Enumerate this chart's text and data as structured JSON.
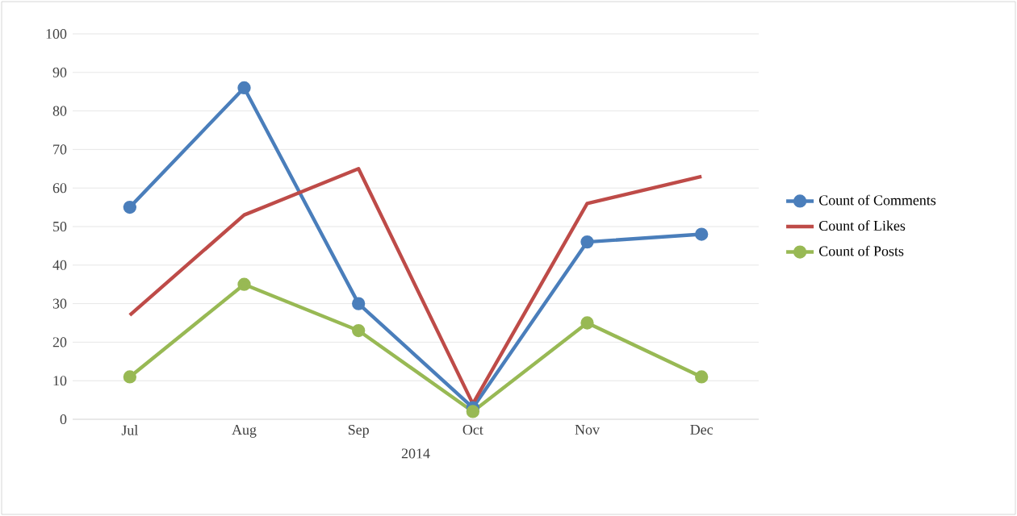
{
  "chart_data": {
    "type": "line",
    "xlabel": "2014",
    "categories": [
      "Jul",
      "Aug",
      "Sep",
      "Oct",
      "Nov",
      "Dec"
    ],
    "series": [
      {
        "name": "Count of Comments",
        "color": "#4a7ebb",
        "marker": "circle",
        "values": [
          55,
          86,
          30,
          3,
          46,
          48
        ]
      },
      {
        "name": "Count of Likes",
        "color": "#be4b48",
        "marker": "none",
        "values": [
          27,
          53,
          65,
          4,
          56,
          63
        ]
      },
      {
        "name": "Count of Posts",
        "color": "#98b954",
        "marker": "circle",
        "values": [
          11,
          35,
          23,
          2,
          25,
          11
        ]
      }
    ],
    "ylim": [
      0,
      100
    ],
    "yticks": [
      0,
      10,
      20,
      30,
      40,
      50,
      60,
      70,
      80,
      90,
      100
    ],
    "grid": "y",
    "legend": "right",
    "line_style": "solid"
  }
}
